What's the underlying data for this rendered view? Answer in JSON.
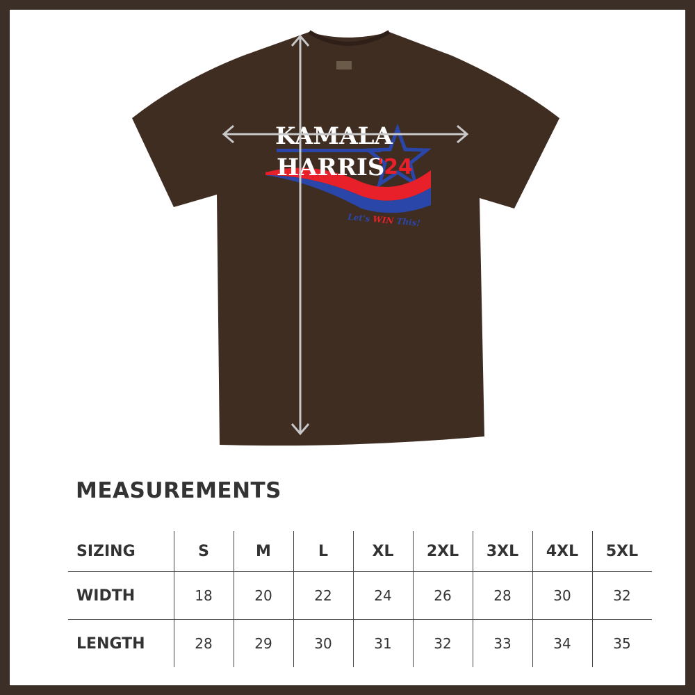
{
  "product": {
    "shirt_color": "#3f2d22",
    "print": {
      "line1": "KAMALA",
      "line2": "HARRIS",
      "year": "'24",
      "tagline_prefix": "Let's",
      "tagline_highlight": "WIN",
      "tagline_suffix": "This!",
      "colors": {
        "red": "#e8202a",
        "blue": "#2a46a8",
        "white": "#ffffff"
      }
    },
    "measure_arrow_color": "#c8c8c8"
  },
  "measurements": {
    "title": "MEASUREMENTS",
    "header": {
      "label": "SIZING",
      "sizes": [
        "S",
        "M",
        "L",
        "XL",
        "2XL",
        "3XL",
        "4XL",
        "5XL"
      ]
    },
    "rows": [
      {
        "label": "WIDTH",
        "values": [
          "18",
          "20",
          "22",
          "24",
          "26",
          "28",
          "30",
          "32"
        ]
      },
      {
        "label": "LENGTH",
        "values": [
          "28",
          "29",
          "30",
          "31",
          "32",
          "33",
          "34",
          "35"
        ]
      }
    ]
  }
}
